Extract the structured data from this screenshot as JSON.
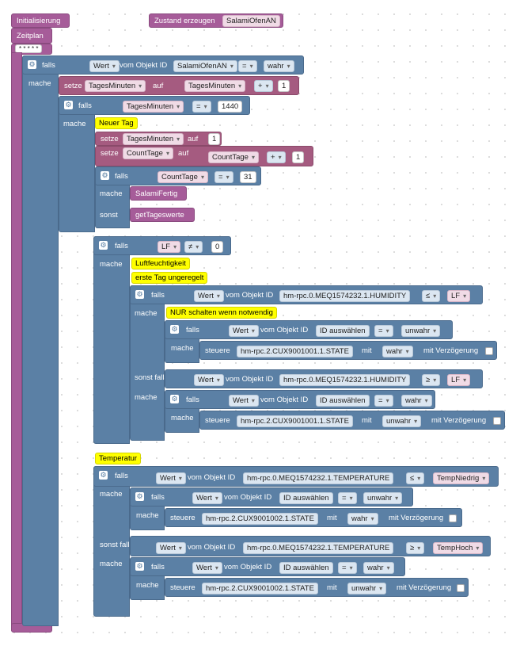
{
  "blocks": {
    "init": "Initialisierung",
    "schedule": "Zeitplan",
    "schedule_val": "* * * * *",
    "state_label": "Zustand erzeugen",
    "state_name": "SalamiOfenAN",
    "if_label": "falls",
    "do_label": "mache",
    "else_label": "sonst",
    "elseif_label": "sonst falls",
    "set_label": "setze",
    "to_label": "auf",
    "value_label": "Wert",
    "from_obj": "vom Objekt ID",
    "obj_salami": "SalamiOfenAN",
    "eq": "=",
    "neq": "≠",
    "le": "≤",
    "ge": "≥",
    "plus": "+",
    "true_val": "wahr",
    "false_val": "unwahr",
    "var_tages": "TagesMinuten",
    "var_count": "CountTage",
    "var_lf": "LF",
    "var_tempn": "TempNiedrig",
    "var_temph": "TempHoch",
    "one": "1",
    "n1440": "1440",
    "n31": "31",
    "zero": "0",
    "comment_neuertag": "Neuer Tag",
    "func_fertig": "SalamiFertig",
    "func_getwerte": "getTageswerte",
    "comment_luft": "Luftfeuchtigkeit",
    "comment_ersttag": "erste Tag ungeregelt",
    "comment_nur": "NUR schalten wenn notwendig",
    "comment_temp": "Temperatur",
    "obj_humidity": "hm-rpc.0.MEQ1574232.1.HUMIDITY",
    "obj_temp": "hm-rpc.0.MEQ1574232.1.TEMPERATURE",
    "id_select": "ID auswählen",
    "control": "steuere",
    "obj_state1": "hm-rpc.2.CUX9001001.1.STATE",
    "obj_state2": "hm-rpc.2.CUX9001002.1.STATE",
    "with_label": "mit",
    "delay_label": "mit Verzögerung"
  },
  "colors": {
    "event": "#a65c99",
    "logic": "#5b80a5",
    "variable": "#a55b80",
    "comment": "#ffff00"
  }
}
